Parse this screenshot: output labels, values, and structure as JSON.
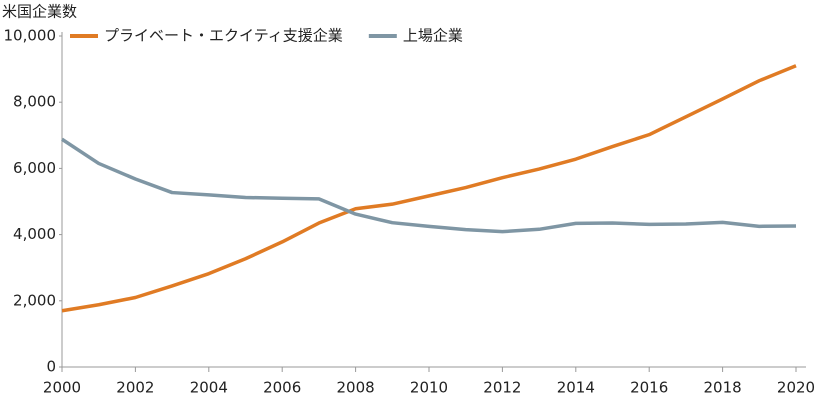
{
  "chart_data": {
    "type": "line",
    "y_label": "米国企業数",
    "x": [
      2000,
      2001,
      2002,
      2003,
      2004,
      2005,
      2006,
      2007,
      2008,
      2009,
      2010,
      2011,
      2012,
      2013,
      2014,
      2015,
      2016,
      2017,
      2018,
      2019,
      2020
    ],
    "series": [
      {
        "name": "プライベート・エクイティ支援企業",
        "color": "#e07b24",
        "values": [
          1700,
          1880,
          2100,
          2450,
          2820,
          3270,
          3780,
          4350,
          4780,
          4920,
          5170,
          5420,
          5720,
          5980,
          6280,
          6660,
          7020,
          7560,
          8100,
          8650,
          9100
        ]
      },
      {
        "name": "上場企業",
        "color": "#7f96a4",
        "values": [
          6880,
          6150,
          5680,
          5270,
          5200,
          5120,
          5100,
          5080,
          4620,
          4360,
          4250,
          4150,
          4090,
          4160,
          4340,
          4350,
          4310,
          4320,
          4370,
          4250,
          4260
        ]
      }
    ],
    "xlim": [
      2000,
      2020
    ],
    "xticks": [
      2000,
      2002,
      2004,
      2006,
      2008,
      2010,
      2012,
      2014,
      2016,
      2018,
      2020
    ],
    "ylim": [
      0,
      10000
    ],
    "yticks": [
      0,
      {
        "value": 2000,
        "label": "2,000"
      },
      {
        "value": 4000,
        "label": "4,000"
      },
      {
        "value": 6000,
        "label": "6,000"
      },
      {
        "value": 8000,
        "label": "8,000"
      },
      {
        "value": 10000,
        "label": "10,000"
      }
    ],
    "grid": false,
    "legend": "top"
  }
}
